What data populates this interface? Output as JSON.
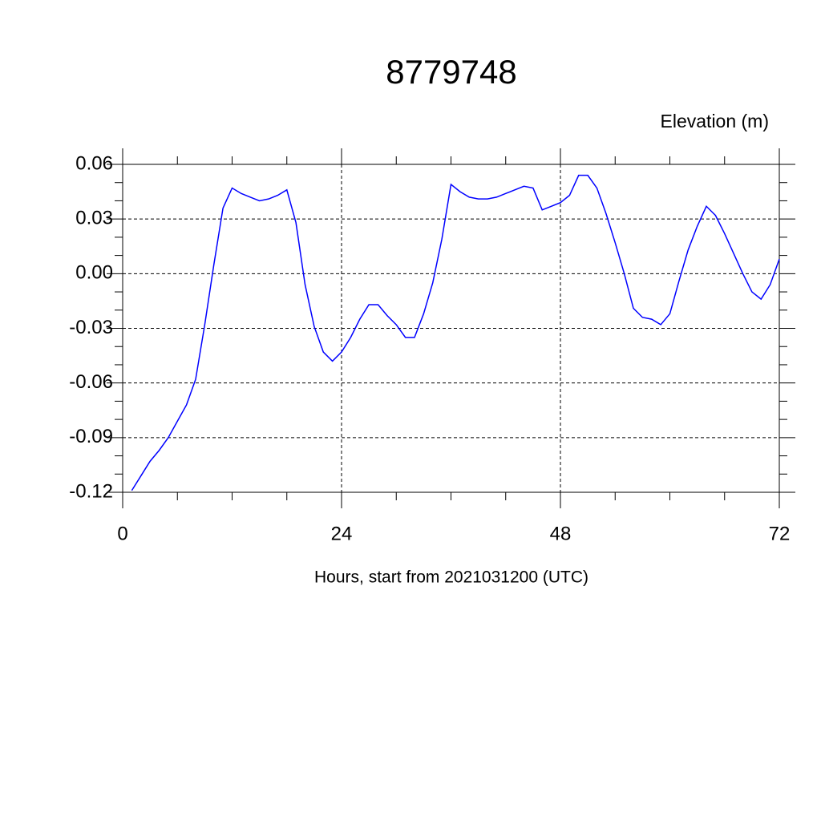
{
  "chart_data": {
    "type": "line",
    "title": "8779748",
    "y_label": "Elevation (m)",
    "x_label": "Hours, start from 2021031200 (UTC)",
    "x": [
      1,
      2,
      3,
      4,
      5,
      6,
      7,
      8,
      9,
      10,
      11,
      12,
      13,
      14,
      15,
      16,
      17,
      18,
      19,
      20,
      21,
      22,
      23,
      24,
      25,
      26,
      27,
      28,
      29,
      30,
      31,
      32,
      33,
      34,
      35,
      36,
      37,
      38,
      39,
      40,
      41,
      42,
      43,
      44,
      45,
      46,
      47,
      48,
      49,
      50,
      51,
      52,
      53,
      54,
      55,
      56,
      57,
      58,
      59,
      60,
      61,
      62,
      63,
      64,
      65,
      66,
      67,
      68,
      69,
      70,
      71,
      72
    ],
    "series": [
      {
        "color": "#0000ff",
        "values": [
          -0.119,
          -0.111,
          -0.103,
          -0.097,
          -0.09,
          -0.081,
          -0.072,
          -0.058,
          -0.028,
          0.005,
          0.036,
          0.047,
          0.044,
          0.042,
          0.04,
          0.041,
          0.043,
          0.046,
          0.028,
          -0.006,
          -0.029,
          -0.043,
          -0.048,
          -0.043,
          -0.035,
          -0.025,
          -0.017,
          -0.017,
          -0.023,
          -0.028,
          -0.035,
          -0.035,
          -0.022,
          -0.005,
          0.019,
          0.049,
          0.045,
          0.042,
          0.041,
          0.041,
          0.042,
          0.044,
          0.046,
          0.048,
          0.047,
          0.035,
          0.037,
          0.039,
          0.043,
          0.054,
          0.054,
          0.047,
          0.033,
          0.017,
          0.0,
          -0.019,
          -0.024,
          -0.025,
          -0.028,
          -0.022,
          -0.004,
          0.013,
          0.026,
          0.037,
          0.032,
          0.022,
          0.011,
          0.0,
          -0.01,
          -0.014,
          -0.006,
          0.008
        ]
      }
    ],
    "xlim": [
      0,
      72
    ],
    "xticks": [
      0,
      24,
      48,
      72
    ],
    "ylim": [
      -0.12,
      0.06
    ],
    "yticks": [
      0.06,
      0.03,
      {
        "value": 0,
        "label": "0.00"
      },
      -0.03,
      -0.06,
      -0.09,
      -0.12
    ],
    "grid": true
  }
}
